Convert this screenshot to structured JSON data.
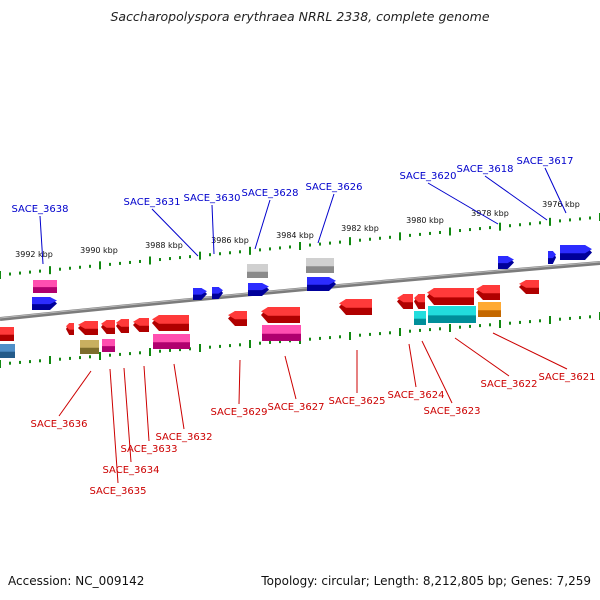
{
  "header": {
    "title": "Saccharopolyspora erythraea NRRL 2338, complete genome"
  },
  "footer": {
    "accession": "Accession: NC_009142",
    "summary": "Topology: circular; Length: 8,212,805 bp; Genes: 7,259"
  },
  "colors": {
    "forward_label": "#0000cc",
    "reverse_label": "#cc0000",
    "ruler_tick": "#118811",
    "backbone": "#808080"
  },
  "scale_labels": [
    "3976 kbp",
    "3978 kbp",
    "3980 kbp",
    "3982 kbp",
    "3984 kbp",
    "3986 kbp",
    "3988 kbp",
    "3990 kbp",
    "3992 kbp"
  ],
  "forward_genes": [
    "SACE_3617",
    "SACE_3618",
    "SACE_3620",
    "SACE_3626",
    "SACE_3628",
    "SACE_3630",
    "SACE_3631",
    "SACE_3638"
  ],
  "reverse_genes": [
    "SACE_3621",
    "SACE_3622",
    "SACE_3623",
    "SACE_3624",
    "SACE_3625",
    "SACE_3627",
    "SACE_3629",
    "SACE_3632",
    "SACE_3633",
    "SACE_3634",
    "SACE_3635",
    "SACE_3636"
  ]
}
